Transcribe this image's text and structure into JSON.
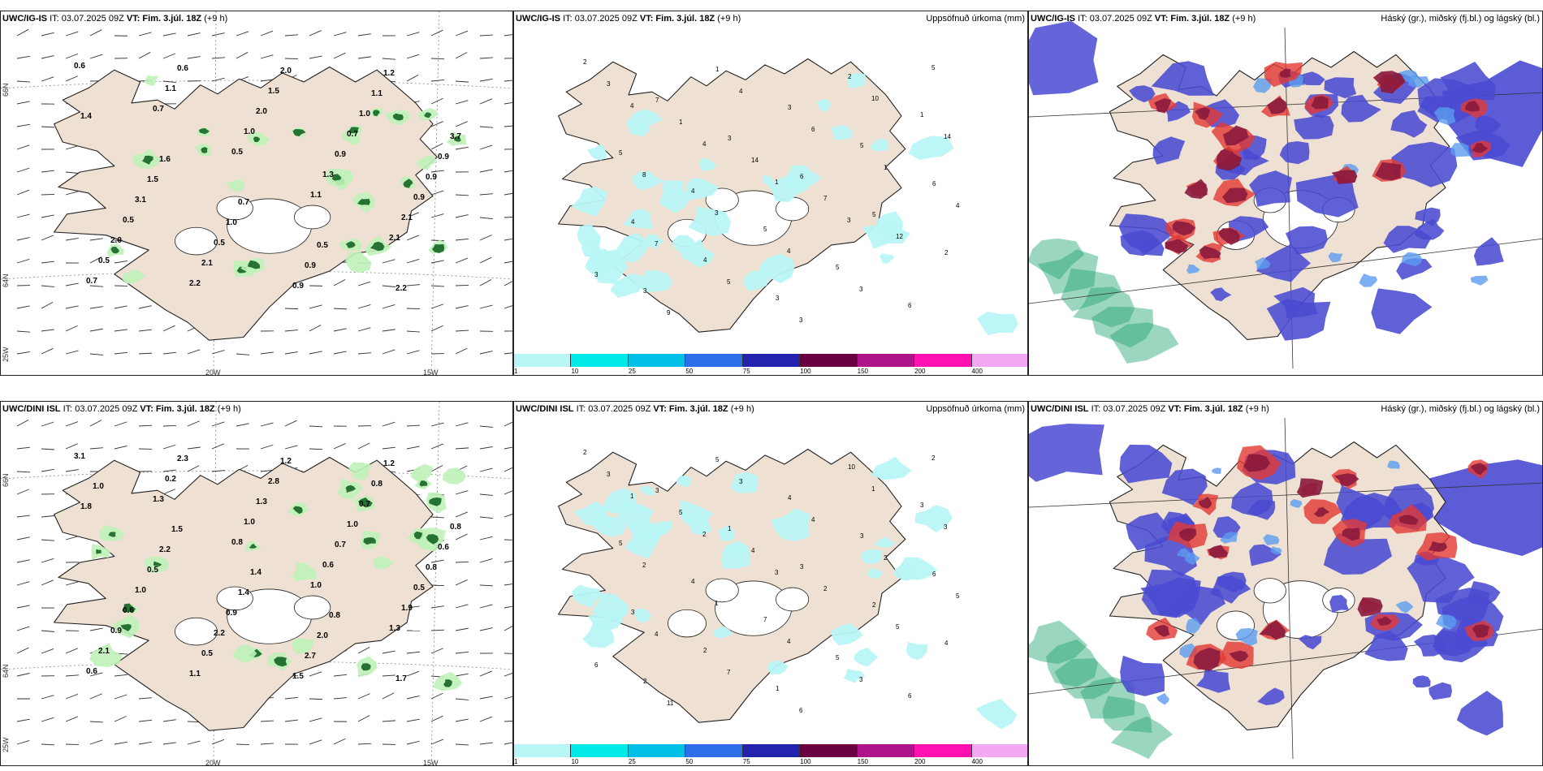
{
  "colors": {
    "land": "#eee0d2",
    "coast": "#222222",
    "grid": "#888888",
    "precip_light": "#b8f6f6",
    "cloud_high": "#8a1a3c",
    "cloud_mid": "#e23a34",
    "cloud_low": "#4a4ad2",
    "cloud_blue_light": "#5b9cf0",
    "cloud_green": "#22a36e",
    "wind_green_light": "#bff2b8",
    "wind_green_dark": "#1d6a2b"
  },
  "icons": {
    "wind_barb": "wind-barb-icon",
    "coastline": "coastline-shape"
  },
  "panels": [
    {
      "model": "UWC/IG-IS",
      "it": "IT: 03.07.2025 09Z",
      "vt": "VT: Fim. 3.júl. 18Z",
      "lead": "(+9 h)",
      "right_title": "",
      "kind": "wind",
      "labels": [
        "0.6",
        "0.7",
        "0.5",
        "1.1",
        "2.1",
        "0.7",
        "1.1",
        "1.0",
        "1.3",
        "2.1",
        "0.5",
        "0.6",
        "2.0",
        "0.9",
        "0.9",
        "2.0",
        "2.2",
        "1.5",
        "0.7",
        "0.9",
        "0.5",
        "2.1",
        "2.0",
        "1.0",
        "0.9",
        "3.1",
        "0.5",
        "0.9",
        "1.1",
        "3.7",
        "1.5",
        "1.0",
        "0.9",
        "1.2",
        "1.4",
        "1.6",
        "0.7",
        "0.5",
        "2.2"
      ],
      "lon_labels": [
        "20W",
        "15W"
      ],
      "lat_labels": [
        "66N",
        "64N",
        "25W"
      ]
    },
    {
      "model": "UWC/IG-IS",
      "it": "IT: 03.07.2025 09Z",
      "vt": "VT: Fim. 3.júl. 18Z",
      "lead": "(+9 h)",
      "right_title": "Uppsöfnuð úrkoma (mm)",
      "kind": "precip",
      "labels": [
        "2",
        "7",
        "3",
        "6",
        "5",
        "2",
        "3",
        "1",
        "3",
        "5",
        "6",
        "4",
        "4",
        "3",
        "2",
        "1",
        "5",
        "4",
        "5",
        "5",
        "6",
        "3",
        "1",
        "14",
        "7",
        "12",
        "3",
        "9",
        "4",
        "6",
        "1",
        "4",
        "7",
        "5",
        "3",
        "10",
        "14",
        "8",
        "3",
        "4",
        "3",
        "5",
        "4",
        "4",
        "1",
        "3"
      ],
      "colorbar": {
        "ticks": [
          "1",
          "10",
          "25",
          "50",
          "75",
          "100",
          "150",
          "200",
          "400"
        ],
        "colors": [
          "#b8f6f6",
          "#00eaea",
          "#00c0e8",
          "#2e6ee8",
          "#2323b0",
          "#6a0040",
          "#b0148a",
          "#ff10b0",
          "#f2a8f2"
        ]
      }
    },
    {
      "model": "UWC/IG-IS",
      "it": "IT: 03.07.2025 09Z",
      "vt": "VT: Fim. 3.júl. 18Z",
      "lead": "(+9 h)",
      "right_title": "Háský (gr.), miðský (fj.bl.) og lágský (bl.)",
      "kind": "cloud"
    },
    {
      "model": "UWC/DINI ISL",
      "it": "IT: 03.07.2025 09Z",
      "vt": "VT: Fim. 3.júl. 18Z",
      "lead": "(+9 h)",
      "right_title": "",
      "kind": "wind",
      "labels": [
        "3.1",
        "1.3",
        "0.8",
        "1.0",
        "1.3",
        "0.6",
        "0.2",
        "1.0",
        "0.6",
        "1.9",
        "2.1",
        "2.3",
        "1.3",
        "0.7",
        "0.5",
        "0.9",
        "1.1",
        "2.8",
        "1.0",
        "0.8",
        "0.6",
        "0.5",
        "1.2",
        "0.7",
        "0.6",
        "1.0",
        "2.2",
        "1.5",
        "0.8",
        "0.8",
        "0.5",
        "0.9",
        "2.7",
        "1.2",
        "1.8",
        "2.2",
        "1.4",
        "2.0",
        "1.7",
        "1.0",
        "1.5",
        "1.4",
        "0.8"
      ],
      "lon_labels": [
        "20W",
        "15W"
      ],
      "lat_labels": [
        "66N",
        "64N",
        "25W"
      ]
    },
    {
      "model": "UWC/DINI ISL",
      "it": "IT: 03.07.2025 09Z",
      "vt": "VT: Fim. 3.júl. 18Z",
      "lead": "(+9 h)",
      "right_title": "Uppsöfnuð úrkoma (mm)",
      "kind": "precip",
      "labels": [
        "2",
        "3",
        "1",
        "3",
        "2",
        "4",
        "2",
        "5",
        "4",
        "3",
        "6",
        "3",
        "2",
        "1",
        "10",
        "3",
        "5",
        "4",
        "7",
        "5",
        "6",
        "3",
        "5",
        "4",
        "2",
        "5",
        "6",
        "11",
        "3",
        "4",
        "2",
        "5",
        "4",
        "7",
        "6",
        "1",
        "3",
        "2",
        "1",
        "4",
        "3",
        "2",
        "1",
        "2",
        "3"
      ],
      "colorbar": {
        "ticks": [
          "1",
          "10",
          "25",
          "50",
          "75",
          "100",
          "150",
          "200",
          "400"
        ],
        "colors": [
          "#b8f6f6",
          "#00eaea",
          "#00c0e8",
          "#2e6ee8",
          "#2323b0",
          "#6a0040",
          "#b0148a",
          "#ff10b0",
          "#f2a8f2"
        ]
      }
    },
    {
      "model": "UWC/DINI ISL",
      "it": "IT: 03.07.2025 09Z",
      "vt": "VT: Fim. 3.júl. 18Z",
      "lead": "(+9 h)",
      "right_title": "Háský (gr.), miðský (fj.bl.) og lágský (bl.)",
      "kind": "cloud"
    }
  ]
}
